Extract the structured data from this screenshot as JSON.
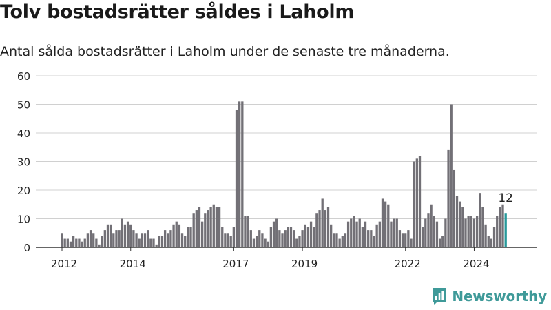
{
  "title": "Tolv bostadsrätter såldes i Laholm",
  "subtitle": "Antal sålda bostadsrätter i Laholm under de senaste tre månaderna.",
  "brand": {
    "name": "Newsworthy",
    "icon": "newsworthy-logo-icon",
    "color": "#3f9a99"
  },
  "colors": {
    "bar": "#727076",
    "highlight": "#26999a",
    "axis": "#333333",
    "grid": "#d0d0d0"
  },
  "chart_data": {
    "type": "bar",
    "x_start": "2012-01",
    "x_ticks": [
      "2012",
      "2014",
      "2017",
      "2019",
      "2022",
      "2024"
    ],
    "y_ticks": [
      0,
      10,
      20,
      30,
      40,
      50,
      60
    ],
    "ylim": [
      0,
      60
    ],
    "highlight_label": "12",
    "values": [
      5,
      3,
      3,
      2,
      4,
      3,
      3,
      2,
      3,
      5,
      6,
      5,
      3,
      1,
      4,
      6,
      8,
      8,
      5,
      6,
      6,
      10,
      8,
      9,
      8,
      6,
      5,
      3,
      5,
      5,
      6,
      3,
      3,
      1,
      4,
      4,
      6,
      5,
      6,
      8,
      9,
      8,
      5,
      4,
      7,
      7,
      12,
      13,
      14,
      9,
      12,
      13,
      14,
      15,
      14,
      14,
      7,
      5,
      5,
      4,
      7,
      48,
      51,
      51,
      11,
      11,
      6,
      3,
      4,
      6,
      5,
      3,
      2,
      7,
      9,
      10,
      6,
      5,
      6,
      7,
      7,
      6,
      3,
      4,
      6,
      8,
      7,
      9,
      7,
      12,
      13,
      17,
      13,
      14,
      8,
      5,
      5,
      3,
      4,
      5,
      9,
      10,
      11,
      9,
      10,
      7,
      9,
      6,
      6,
      4,
      8,
      9,
      17,
      16,
      15,
      9,
      10,
      10,
      6,
      5,
      5,
      6,
      3,
      30,
      31,
      32,
      7,
      10,
      12,
      15,
      11,
      9,
      3,
      4,
      10,
      34,
      50,
      27,
      18,
      16,
      14,
      10,
      11,
      11,
      10,
      11,
      19,
      14,
      8,
      4,
      3,
      7,
      11,
      14,
      15,
      12
    ]
  }
}
